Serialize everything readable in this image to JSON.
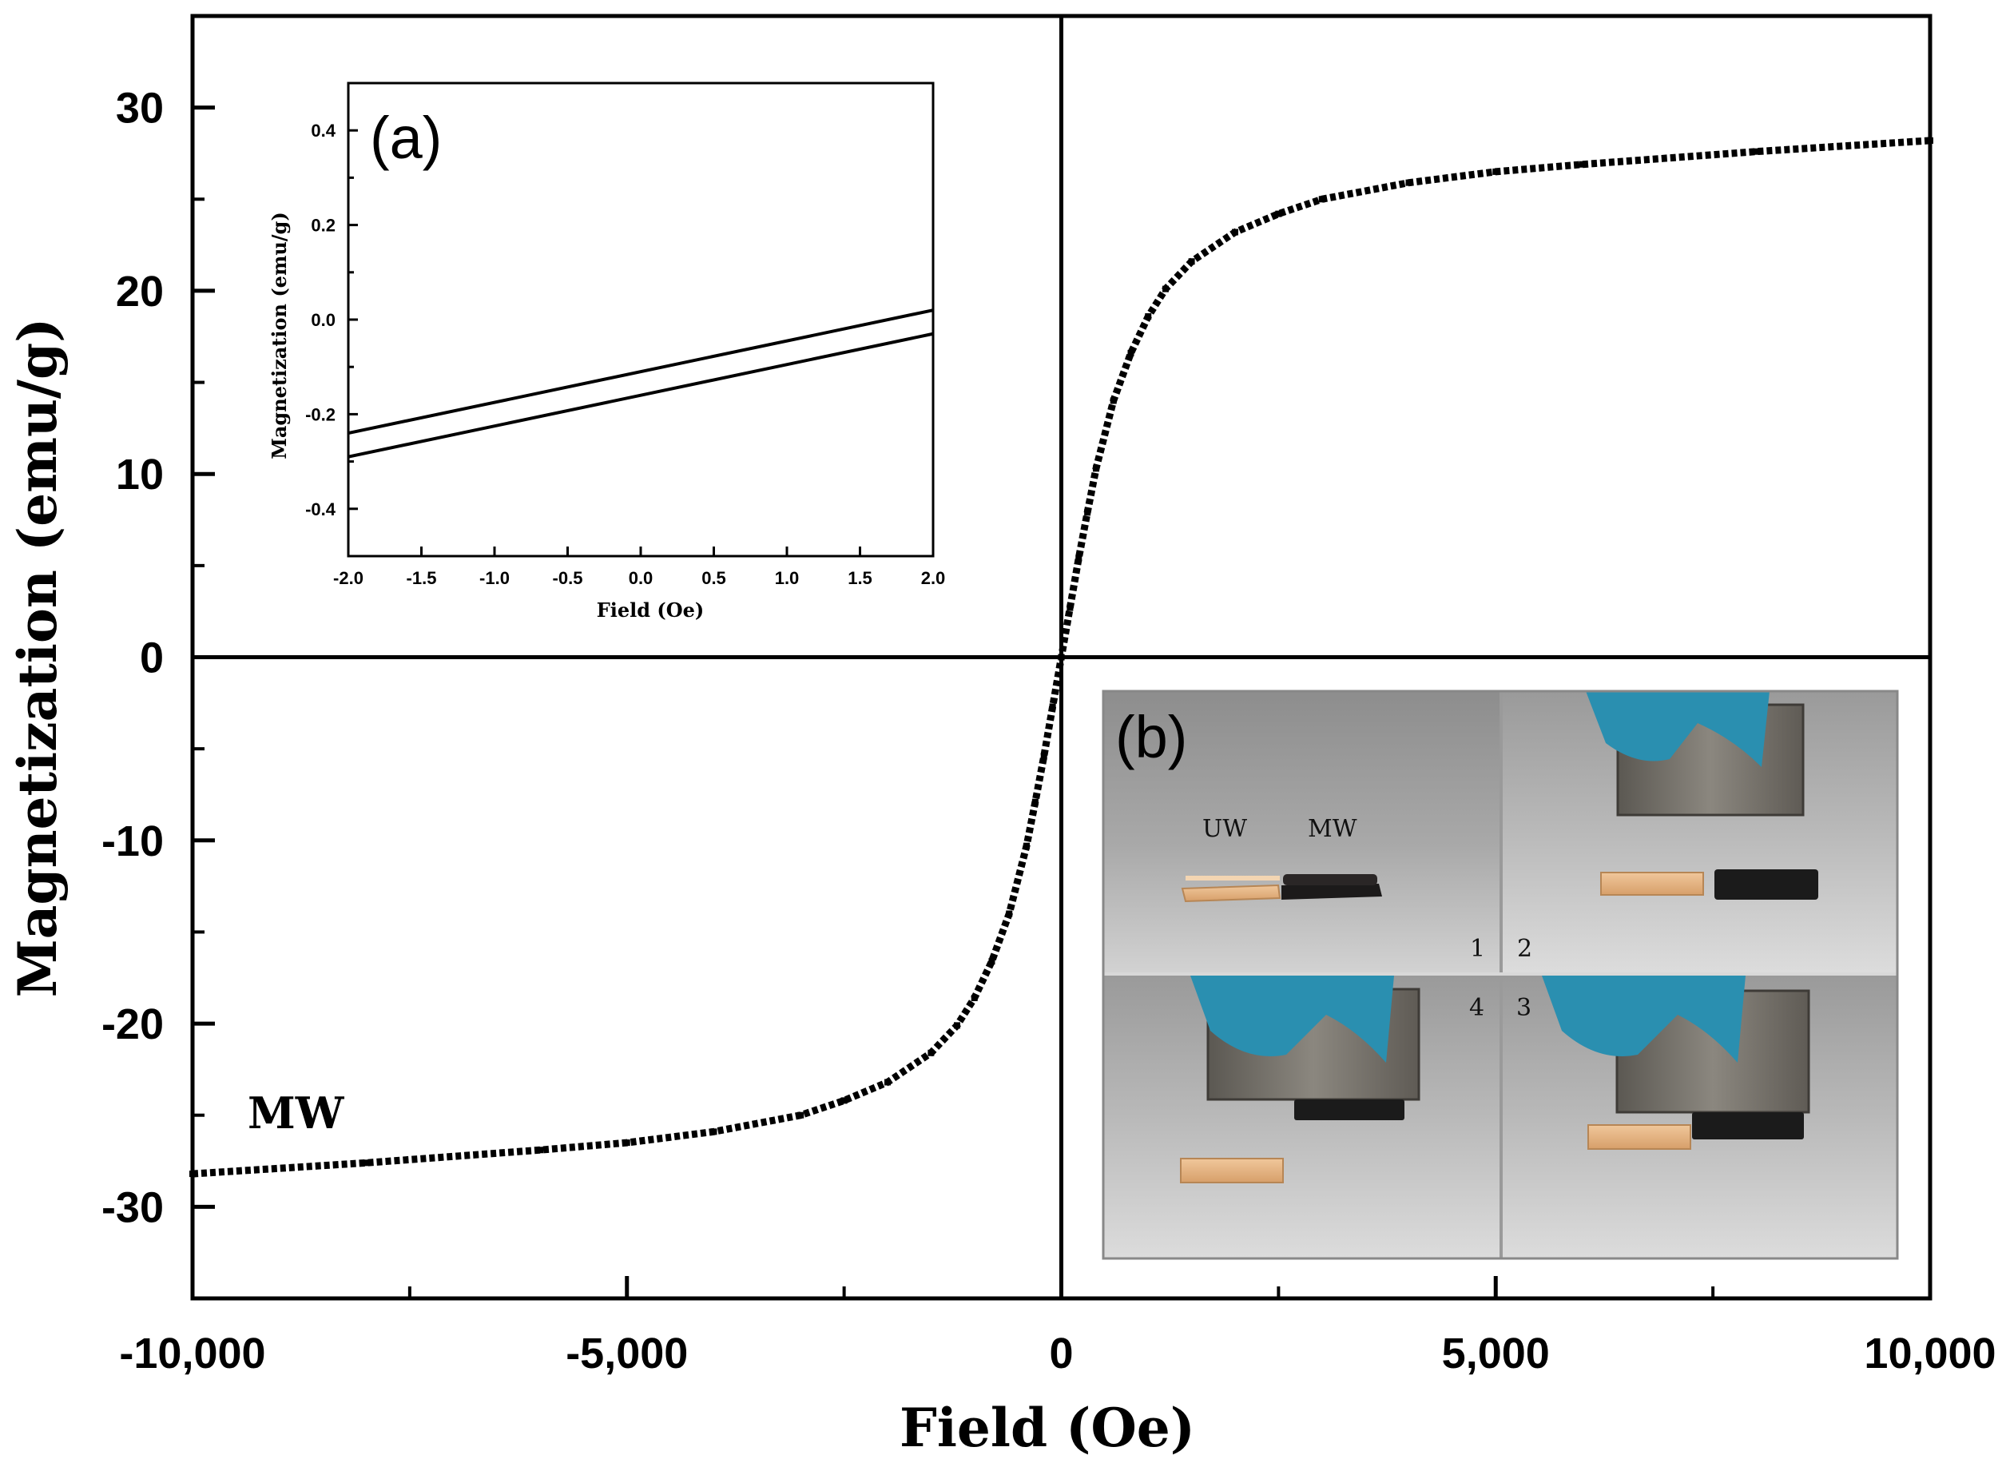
{
  "chart_data": [
    {
      "type": "line",
      "title": "",
      "xlabel": "Field (Oe)",
      "ylabel": "Magnetization (emu/g)",
      "xlim": [
        -10000,
        10000
      ],
      "ylim": [
        -35,
        35
      ],
      "x_ticks": [
        -10000,
        -5000,
        0,
        5000,
        10000
      ],
      "x_tick_labels": [
        "-10,000",
        "-5,000",
        "0",
        "5,000",
        "10,000"
      ],
      "y_ticks": [
        -30,
        -20,
        -10,
        0,
        10,
        20,
        30
      ],
      "y_tick_labels": [
        "-30",
        "-20",
        "-10",
        "0",
        "10",
        "20",
        "30"
      ],
      "annotation": "MW",
      "series": [
        {
          "name": "MW",
          "style": "dotted",
          "x": [
            -10000,
            -8000,
            -6000,
            -5000,
            -4000,
            -3000,
            -2500,
            -2000,
            -1500,
            -1200,
            -1000,
            -800,
            -600,
            -400,
            -300,
            -200,
            -100,
            0,
            100,
            200,
            300,
            400,
            600,
            800,
            1000,
            1200,
            1500,
            2000,
            2500,
            3000,
            4000,
            5000,
            6000,
            8000,
            10000
          ],
          "y": [
            -28.2,
            -27.6,
            -26.9,
            -26.5,
            -25.9,
            -25.0,
            -24.2,
            -23.2,
            -21.6,
            -20.1,
            -18.6,
            -16.6,
            -14.0,
            -10.3,
            -7.9,
            -5.4,
            -2.7,
            0,
            2.7,
            5.4,
            7.9,
            10.3,
            14.0,
            16.6,
            18.6,
            20.1,
            21.6,
            23.2,
            24.2,
            25.0,
            25.9,
            26.5,
            26.9,
            27.6,
            28.2
          ]
        }
      ]
    },
    {
      "type": "line",
      "panel": "(a)",
      "xlabel": "Field (Oe)",
      "ylabel": "Magnetization (emu/g)",
      "xlim": [
        -2.0,
        2.0
      ],
      "ylim": [
        -0.5,
        0.5
      ],
      "x_ticks": [
        -2.0,
        -1.5,
        -1.0,
        -0.5,
        0.0,
        0.5,
        1.0,
        1.5,
        2.0
      ],
      "x_tick_labels": [
        "-2.0",
        "-1.5",
        "-1.0",
        "-0.5",
        "0.0",
        "0.5",
        "1.0",
        "1.5",
        "2.0"
      ],
      "y_ticks": [
        -0.4,
        -0.2,
        0.0,
        0.2,
        0.4
      ],
      "y_tick_labels": [
        "-0.4",
        "-0.2",
        "0.0",
        "0.2",
        "0.4"
      ],
      "series": [
        {
          "name": "upper branch",
          "x": [
            -2.0,
            2.0
          ],
          "y": [
            -0.24,
            0.02
          ]
        },
        {
          "name": "lower branch",
          "x": [
            -2.0,
            2.0
          ],
          "y": [
            -0.29,
            -0.03
          ]
        }
      ]
    }
  ],
  "photo_inset": {
    "panel": "(b)",
    "sample_labels": [
      "UW",
      "MW"
    ],
    "frame_numbers": [
      "1",
      "2",
      "4",
      "3"
    ]
  },
  "colors": {
    "line": "#000000",
    "photo_bg": "#a9a9a9",
    "glove": "#2a8fb0",
    "magnet": "#6e6a63",
    "wood_untreated": "#e7b98a",
    "wood_magnetic": "#1b1b1b"
  }
}
